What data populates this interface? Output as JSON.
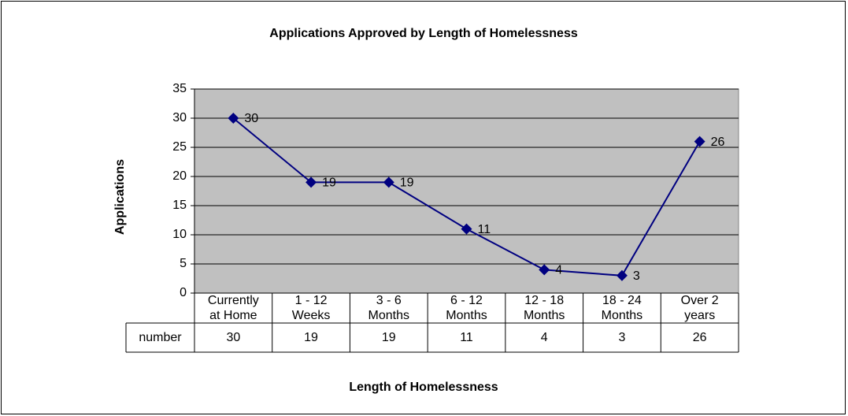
{
  "chart_data": {
    "type": "line",
    "title": "Applications Approved by Length of Homelessness",
    "x_label": "Length of Homelessness",
    "y_label": "Applications",
    "categories": [
      "Currently at Home",
      "1 - 12 Weeks",
      "3 - 6 Months",
      "6 - 12 Months",
      "12 - 18 Months",
      "18 - 24 Months",
      "Over 2 years"
    ],
    "series": [
      {
        "name": "number",
        "color": "#000080",
        "values": [
          30,
          19,
          19,
          11,
          4,
          3,
          26
        ]
      }
    ],
    "ylim": [
      0,
      35
    ],
    "yticks": [
      0,
      5,
      10,
      15,
      20,
      25,
      30,
      35
    ],
    "grid": true,
    "plot_background": "#c0c0c0"
  }
}
